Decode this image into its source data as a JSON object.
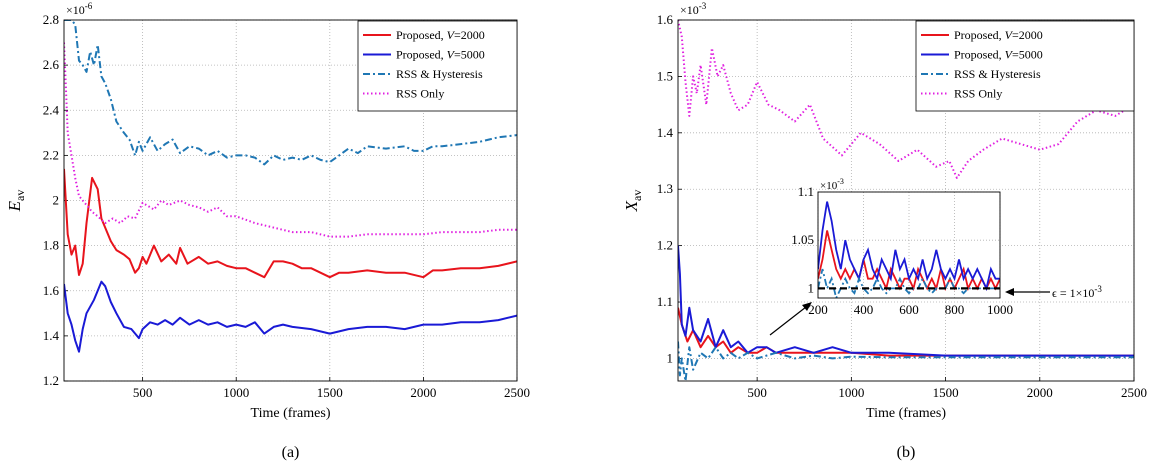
{
  "chart_data": [
    {
      "panel_label": "(a)",
      "type": "line",
      "xlabel": "Time (frames)",
      "ylabel": "E",
      "ylabel_sub": "av",
      "y_multiplier": "×10",
      "y_multiplier_exp": "-6",
      "xlim": [
        80,
        2500
      ],
      "ylim": [
        1.2,
        2.8
      ],
      "xticks": [
        500,
        1000,
        1500,
        2000,
        2500
      ],
      "yticks": [
        1.2,
        1.4,
        1.6,
        1.8,
        2.0,
        2.2,
        2.4,
        2.6,
        2.8
      ],
      "ytick_labels": [
        "1.2",
        "1.4",
        "1.6",
        "1.8",
        "2",
        "2.2",
        "2.4",
        "2.6",
        "2.8"
      ],
      "grid": true,
      "legend_position": "top-right",
      "series": [
        {
          "name": "Proposed, V=2000",
          "legend_prefix": "Proposed, ",
          "legend_var": "V",
          "legend_suffix": "=2000",
          "color": "#e8141c",
          "style": "solid",
          "x": [
            80,
            100,
            120,
            140,
            160,
            180,
            200,
            230,
            260,
            280,
            300,
            330,
            360,
            400,
            430,
            460,
            480,
            500,
            520,
            560,
            600,
            640,
            680,
            700,
            740,
            800,
            850,
            900,
            950,
            1000,
            1050,
            1100,
            1150,
            1200,
            1250,
            1300,
            1350,
            1400,
            1450,
            1500,
            1550,
            1600,
            1700,
            1800,
            1900,
            2000,
            2050,
            2100,
            2200,
            2300,
            2400,
            2500
          ],
          "y": [
            2.14,
            1.85,
            1.76,
            1.8,
            1.67,
            1.72,
            1.9,
            2.1,
            2.05,
            1.92,
            1.88,
            1.82,
            1.78,
            1.76,
            1.74,
            1.68,
            1.7,
            1.75,
            1.72,
            1.8,
            1.73,
            1.76,
            1.72,
            1.79,
            1.72,
            1.75,
            1.72,
            1.73,
            1.71,
            1.7,
            1.7,
            1.68,
            1.66,
            1.73,
            1.73,
            1.72,
            1.7,
            1.7,
            1.68,
            1.66,
            1.68,
            1.68,
            1.69,
            1.68,
            1.68,
            1.66,
            1.69,
            1.69,
            1.7,
            1.7,
            1.71,
            1.73
          ]
        },
        {
          "name": "Proposed, V=5000",
          "legend_prefix": "Proposed, ",
          "legend_var": "V",
          "legend_suffix": "=5000",
          "color": "#1a1ad6",
          "style": "solid",
          "x": [
            80,
            100,
            120,
            140,
            160,
            180,
            200,
            240,
            280,
            300,
            330,
            360,
            400,
            440,
            480,
            500,
            540,
            580,
            620,
            660,
            700,
            750,
            800,
            850,
            900,
            950,
            1000,
            1050,
            1100,
            1150,
            1200,
            1250,
            1300,
            1400,
            1500,
            1600,
            1700,
            1800,
            1900,
            2000,
            2100,
            2200,
            2300,
            2400,
            2500
          ],
          "y": [
            1.63,
            1.5,
            1.45,
            1.38,
            1.33,
            1.43,
            1.5,
            1.56,
            1.64,
            1.62,
            1.55,
            1.5,
            1.44,
            1.43,
            1.39,
            1.43,
            1.46,
            1.45,
            1.47,
            1.45,
            1.48,
            1.45,
            1.47,
            1.45,
            1.46,
            1.44,
            1.45,
            1.44,
            1.46,
            1.41,
            1.44,
            1.45,
            1.44,
            1.43,
            1.41,
            1.43,
            1.44,
            1.44,
            1.43,
            1.45,
            1.45,
            1.46,
            1.46,
            1.47,
            1.49
          ]
        },
        {
          "name": "RSS & Hysteresis",
          "color": "#1f77b4",
          "style": "dashdot",
          "x": [
            80,
            100,
            120,
            140,
            160,
            180,
            200,
            220,
            240,
            260,
            280,
            300,
            330,
            360,
            400,
            430,
            460,
            480,
            500,
            540,
            580,
            620,
            660,
            700,
            750,
            800,
            850,
            900,
            950,
            1000,
            1050,
            1100,
            1150,
            1200,
            1250,
            1300,
            1350,
            1400,
            1450,
            1500,
            1550,
            1600,
            1650,
            1700,
            1800,
            1900,
            1950,
            2000,
            2050,
            2100,
            2200,
            2300,
            2400,
            2500
          ],
          "y": [
            2.8,
            2.8,
            2.8,
            2.78,
            2.62,
            2.6,
            2.57,
            2.66,
            2.6,
            2.69,
            2.55,
            2.52,
            2.45,
            2.35,
            2.3,
            2.27,
            2.2,
            2.26,
            2.22,
            2.28,
            2.22,
            2.25,
            2.27,
            2.21,
            2.24,
            2.23,
            2.2,
            2.22,
            2.19,
            2.2,
            2.2,
            2.19,
            2.16,
            2.2,
            2.18,
            2.19,
            2.18,
            2.2,
            2.18,
            2.17,
            2.2,
            2.23,
            2.21,
            2.24,
            2.23,
            2.24,
            2.22,
            2.22,
            2.24,
            2.24,
            2.25,
            2.26,
            2.28,
            2.29
          ]
        },
        {
          "name": "RSS Only",
          "color": "#e020e0",
          "style": "dotted",
          "x": [
            80,
            90,
            100,
            120,
            140,
            160,
            180,
            200,
            230,
            260,
            300,
            340,
            380,
            420,
            460,
            500,
            560,
            600,
            640,
            700,
            750,
            800,
            850,
            900,
            950,
            1000,
            1100,
            1200,
            1300,
            1400,
            1500,
            1600,
            1700,
            1800,
            1900,
            2000,
            2100,
            2200,
            2300,
            2400,
            2500
          ],
          "y": [
            2.7,
            2.5,
            2.3,
            2.2,
            2.1,
            2.02,
            2.0,
            1.98,
            1.95,
            1.93,
            1.9,
            1.92,
            1.9,
            1.93,
            1.92,
            1.99,
            1.96,
            2.0,
            1.98,
            2.0,
            1.98,
            1.97,
            1.95,
            1.97,
            1.93,
            1.93,
            1.9,
            1.88,
            1.86,
            1.86,
            1.84,
            1.84,
            1.85,
            1.85,
            1.85,
            1.85,
            1.86,
            1.86,
            1.86,
            1.87,
            1.87
          ]
        }
      ]
    },
    {
      "panel_label": "(b)",
      "type": "line",
      "xlabel": "Time (frames)",
      "ylabel": "X",
      "ylabel_sub": "av",
      "y_multiplier": "×10",
      "y_multiplier_exp": "-3",
      "xlim": [
        80,
        2500
      ],
      "ylim": [
        0.96,
        1.6
      ],
      "xticks": [
        500,
        1000,
        1500,
        2000,
        2500
      ],
      "yticks": [
        1.0,
        1.1,
        1.2,
        1.3,
        1.4,
        1.5,
        1.6
      ],
      "ytick_labels": [
        "1",
        "1.1",
        "1.2",
        "1.3",
        "1.4",
        "1.5",
        "1.6"
      ],
      "grid": true,
      "legend_position": "top-right",
      "annotation_prefix": "ϵ = 1×10",
      "annotation_exp": "-3",
      "series": [
        {
          "name": "Proposed, V=2000",
          "legend_prefix": "Proposed, ",
          "legend_var": "V",
          "legend_suffix": "=2000",
          "color": "#e8141c",
          "style": "solid",
          "x": [
            80,
            100,
            130,
            160,
            200,
            240,
            280,
            320,
            360,
            400,
            450,
            500,
            550,
            600,
            700,
            800,
            900,
            1000,
            1200,
            1500,
            2000,
            2500
          ],
          "y": [
            1.09,
            1.06,
            1.03,
            1.05,
            1.02,
            1.04,
            1.02,
            1.03,
            1.01,
            1.02,
            1.01,
            1.01,
            1.02,
            1.01,
            1.01,
            1.01,
            1.01,
            1.01,
            1.005,
            1.005,
            1.005,
            1.005
          ]
        },
        {
          "name": "Proposed, V=5000",
          "legend_prefix": "Proposed, ",
          "legend_var": "V",
          "legend_suffix": "=5000",
          "color": "#1a1ad6",
          "style": "solid",
          "x": [
            80,
            90,
            100,
            120,
            140,
            160,
            200,
            240,
            280,
            320,
            360,
            400,
            450,
            500,
            550,
            600,
            700,
            800,
            900,
            1000,
            1200,
            1500,
            2000,
            2500
          ],
          "y": [
            1.2,
            1.15,
            1.06,
            1.04,
            1.09,
            1.05,
            1.03,
            1.07,
            1.02,
            1.05,
            1.02,
            1.03,
            1.01,
            1.02,
            1.02,
            1.01,
            1.02,
            1.01,
            1.02,
            1.01,
            1.01,
            1.005,
            1.005,
            1.005
          ]
        },
        {
          "name": "RSS & Hysteresis",
          "color": "#1f77b4",
          "style": "dashdot",
          "x": [
            80,
            90,
            100,
            120,
            140,
            160,
            200,
            240,
            280,
            320,
            360,
            400,
            450,
            500,
            600,
            700,
            800,
            900,
            1000,
            1200,
            1500,
            2000,
            2500
          ],
          "y": [
            1.03,
            0.97,
            1.0,
            0.96,
            1.02,
            0.98,
            1.01,
            1.0,
            1.02,
            1.0,
            1.01,
            1.0,
            1.01,
            1.0,
            1.01,
            1.0,
            1.005,
            1.0,
            1.003,
            1.002,
            1.002,
            1.002,
            1.002
          ]
        },
        {
          "name": "RSS Only",
          "color": "#e020e0",
          "style": "dotted",
          "x": [
            80,
            100,
            120,
            140,
            160,
            180,
            200,
            230,
            260,
            290,
            320,
            360,
            400,
            450,
            500,
            560,
            620,
            700,
            780,
            850,
            950,
            1050,
            1150,
            1250,
            1350,
            1450,
            1520,
            1560,
            1620,
            1700,
            1800,
            1900,
            2000,
            2100,
            2200,
            2300,
            2400,
            2500
          ],
          "y": [
            1.6,
            1.57,
            1.49,
            1.43,
            1.5,
            1.47,
            1.52,
            1.45,
            1.55,
            1.5,
            1.52,
            1.47,
            1.44,
            1.45,
            1.49,
            1.45,
            1.44,
            1.42,
            1.45,
            1.39,
            1.36,
            1.4,
            1.38,
            1.35,
            1.37,
            1.34,
            1.35,
            1.32,
            1.35,
            1.37,
            1.39,
            1.38,
            1.37,
            1.38,
            1.42,
            1.44,
            1.43,
            1.45
          ]
        }
      ],
      "inset": {
        "xlim": [
          200,
          1000
        ],
        "ylim": [
          0.99,
          1.1
        ],
        "xticks": [
          200,
          400,
          600,
          800,
          1000
        ],
        "yticks": [
          1.0,
          1.05,
          1.1
        ],
        "ytick_labels": [
          "1",
          "1.05",
          "1.1"
        ],
        "y_multiplier": "×10",
        "y_multiplier_exp": "-3",
        "epsilon": 1.0,
        "series": [
          {
            "name": "Proposed, V=2000",
            "color": "#e8141c",
            "style": "solid",
            "x": [
              200,
              220,
              240,
              260,
              280,
              300,
              320,
              340,
              360,
              380,
              400,
              420,
              440,
              460,
              480,
              500,
              520,
              540,
              560,
              580,
              600,
              620,
              640,
              660,
              680,
              700,
              720,
              740,
              760,
              780,
              800,
              820,
              840,
              860,
              880,
              900,
              920,
              940,
              960,
              980,
              1000
            ],
            "y": [
              1.01,
              1.03,
              1.06,
              1.04,
              1.02,
              1.01,
              1.02,
              1.01,
              1.02,
              1.01,
              1.03,
              1.01,
              1.01,
              1.02,
              1.01,
              1.0,
              1.02,
              1.01,
              1.0,
              1.01,
              1.01,
              1.0,
              1.02,
              1.01,
              1.0,
              1.01,
              1.0,
              1.02,
              1.0,
              1.01,
              1.0,
              1.01,
              1.02,
              1.0,
              1.01,
              1.0,
              1.01,
              1.0,
              1.01,
              1.0,
              1.01
            ]
          },
          {
            "name": "Proposed, V=5000",
            "color": "#1a1ad6",
            "style": "solid",
            "x": [
              200,
              220,
              240,
              260,
              280,
              300,
              320,
              340,
              360,
              380,
              400,
              420,
              440,
              460,
              480,
              500,
              520,
              540,
              560,
              580,
              600,
              620,
              640,
              660,
              680,
              700,
              720,
              740,
              760,
              780,
              800,
              820,
              840,
              860,
              880,
              900,
              920,
              940,
              960,
              980,
              1000
            ],
            "y": [
              1.02,
              1.06,
              1.09,
              1.07,
              1.04,
              1.02,
              1.05,
              1.03,
              1.02,
              1.01,
              1.03,
              1.04,
              1.02,
              1.01,
              1.03,
              1.02,
              1.01,
              1.04,
              1.02,
              1.03,
              1.01,
              1.02,
              1.01,
              1.03,
              1.01,
              1.02,
              1.04,
              1.02,
              1.01,
              1.02,
              1.01,
              1.03,
              1.01,
              1.02,
              1.01,
              1.02,
              1.01,
              1.0,
              1.02,
              1.01,
              1.01
            ]
          },
          {
            "name": "RSS & Hysteresis",
            "color": "#1f77b4",
            "style": "dashdot",
            "x": [
              200,
              220,
              240,
              260,
              280,
              300,
              320,
              340,
              360,
              380,
              400,
              420,
              440,
              460,
              480,
              500,
              520,
              540,
              560,
              580,
              600,
              620,
              640,
              660,
              680,
              700,
              720,
              740,
              760,
              780,
              800,
              820,
              840,
              860,
              880,
              900,
              920,
              940,
              960,
              980,
              1000
            ],
            "y": [
              1.0,
              1.02,
              1.0,
              1.01,
              0.99,
              1.0,
              1.01,
              1.0,
              0.995,
              1.01,
              1.0,
              0.995,
              1.0,
              1.01,
              1.0,
              0.995,
              1.0,
              1.0,
              1.01,
              1.0,
              0.995,
              1.0,
              1.0,
              1.01,
              1.0,
              0.995,
              1.0,
              1.0,
              1.0,
              1.01,
              1.0,
              1.0,
              0.995,
              1.0,
              1.0,
              1.0,
              1.0,
              1.0,
              1.0,
              1.0,
              1.0
            ]
          }
        ]
      }
    }
  ]
}
